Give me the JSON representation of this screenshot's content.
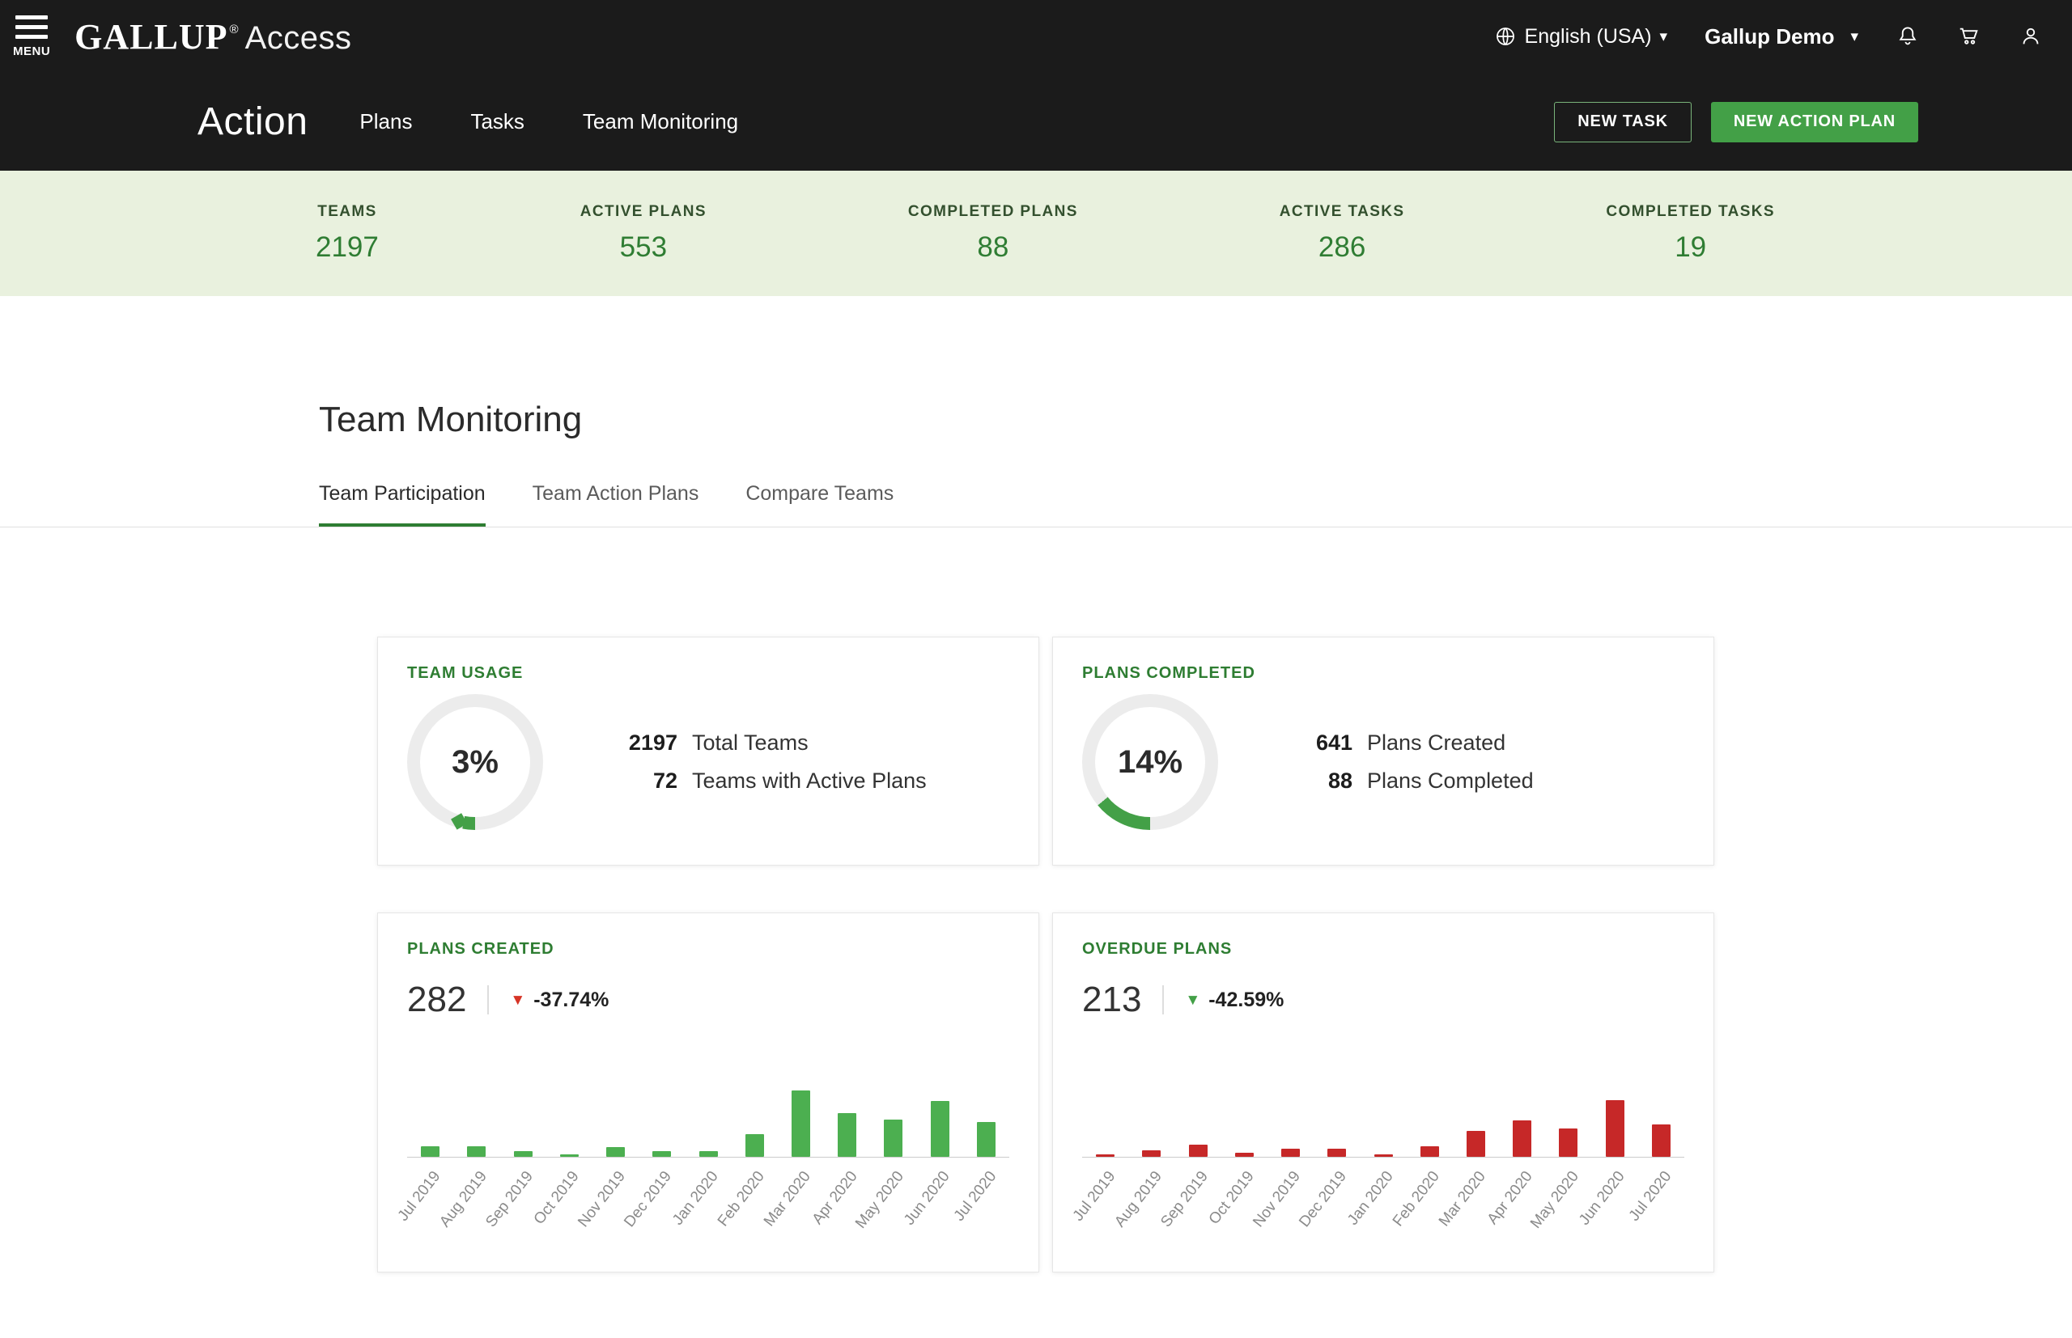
{
  "topbar": {
    "menu_label": "MENU",
    "brand": "GALLUP",
    "brand_reg": "®",
    "brand_suffix": "Access",
    "language_label": "English (USA)",
    "account_label": "Gallup Demo"
  },
  "action_bar": {
    "title": "Action",
    "tabs": [
      "Plans",
      "Tasks",
      "Team Monitoring"
    ],
    "new_task_label": "NEW TASK",
    "new_action_plan_label": "NEW ACTION PLAN"
  },
  "stats_band": [
    {
      "label": "TEAMS",
      "value": "2197"
    },
    {
      "label": "ACTIVE PLANS",
      "value": "553"
    },
    {
      "label": "COMPLETED PLANS",
      "value": "88"
    },
    {
      "label": "ACTIVE TASKS",
      "value": "286"
    },
    {
      "label": "COMPLETED TASKS",
      "value": "19"
    }
  ],
  "page": {
    "title": "Team Monitoring",
    "tabs": [
      {
        "label": "Team Participation",
        "active": true
      },
      {
        "label": "Team Action Plans",
        "active": false
      },
      {
        "label": "Compare Teams",
        "active": false
      }
    ]
  },
  "colors": {
    "green": "#43a047",
    "dark_green": "#2e7d32",
    "red": "#c62828",
    "band_bg": "#e9f1de"
  },
  "chart_data": [
    {
      "type": "donut",
      "title": "TEAM USAGE",
      "percent": 3,
      "label": "3%",
      "stats": [
        {
          "value": "2197",
          "label": "Total Teams"
        },
        {
          "value": "72",
          "label": "Teams with Active Plans"
        }
      ]
    },
    {
      "type": "donut",
      "title": "PLANS COMPLETED",
      "percent": 14,
      "label": "14%",
      "stats": [
        {
          "value": "641",
          "label": "Plans Created"
        },
        {
          "value": "88",
          "label": "Plans Completed"
        }
      ]
    },
    {
      "type": "bar",
      "title": "PLANS CREATED",
      "headline": "282",
      "change": "-37.74%",
      "change_direction": "down",
      "trend_color": "#d63426",
      "bar_color": "#4caf50",
      "categories": [
        "Jul 2019",
        "Aug 2019",
        "Sep 2019",
        "Oct 2019",
        "Nov 2019",
        "Dec 2019",
        "Jan 2020",
        "Feb 2020",
        "Mar 2020",
        "Apr 2020",
        "May 2020",
        "Jun 2020",
        "Jul 2020"
      ],
      "values": [
        87,
        87,
        43,
        22,
        76,
        43,
        43,
        184,
        542,
        358,
        304,
        453,
        282
      ],
      "ylim": [
        0,
        560
      ]
    },
    {
      "type": "bar",
      "title": "OVERDUE PLANS",
      "headline": "213",
      "change": "-42.59%",
      "change_direction": "down",
      "trend_color": "#43a047",
      "bar_color": "#c62828",
      "categories": [
        "Jul 2019",
        "Aug 2019",
        "Sep 2019",
        "Oct 2019",
        "Nov 2019",
        "Dec 2019",
        "Jan 2020",
        "Feb 2020",
        "Mar 2020",
        "Apr 2020",
        "May 2020",
        "Jun 2020",
        "Jul 2020"
      ],
      "values": [
        17,
        43,
        77,
        26,
        51,
        51,
        17,
        68,
        170,
        239,
        187,
        371,
        213
      ],
      "ylim": [
        0,
        450
      ]
    }
  ]
}
